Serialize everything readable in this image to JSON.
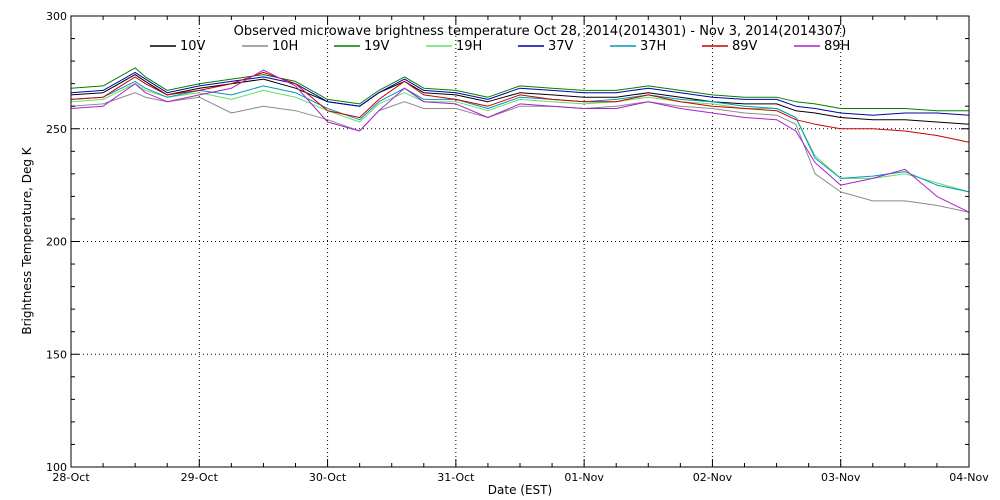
{
  "chart_data": {
    "type": "line",
    "title": "Observed microwave brightness temperature Oct 28, 2014(2014301) - Nov  3, 2014(2014307)",
    "xlabel": "Date (EST)",
    "ylabel": "Brightness Temperature, Deg K",
    "x_unit": "days",
    "xlim": [
      0,
      7
    ],
    "ylim": [
      100,
      300
    ],
    "x_ticks": [
      {
        "value": 0,
        "label": "28-Oct"
      },
      {
        "value": 1,
        "label": "29-Oct"
      },
      {
        "value": 2,
        "label": "30-Oct"
      },
      {
        "value": 3,
        "label": "31-Oct"
      },
      {
        "value": 4,
        "label": "01-Nov"
      },
      {
        "value": 5,
        "label": "02-Nov"
      },
      {
        "value": 6,
        "label": "03-Nov"
      },
      {
        "value": 7,
        "label": "04-Nov"
      }
    ],
    "y_ticks": [
      100,
      150,
      200,
      250,
      300
    ],
    "grid": true,
    "legend_position": "top",
    "x": [
      0,
      0.25,
      0.5,
      0.58,
      0.75,
      1.0,
      1.25,
      1.5,
      1.75,
      2.0,
      2.25,
      2.4,
      2.6,
      2.75,
      3.0,
      3.25,
      3.5,
      3.75,
      4.0,
      4.25,
      4.5,
      4.75,
      5.0,
      5.25,
      5.5,
      5.65,
      5.8,
      6.0,
      6.25,
      6.5,
      6.75,
      7.0
    ],
    "series": [
      {
        "name": "10V",
        "color": "#000000",
        "values": [
          265,
          266,
          274,
          271,
          265,
          268,
          270,
          272,
          268,
          262,
          260,
          266,
          271,
          266,
          265,
          262,
          266,
          265,
          264,
          264,
          266,
          264,
          262,
          261,
          261,
          258,
          257,
          255,
          254,
          254,
          253,
          252
        ]
      },
      {
        "name": "10H",
        "color": "#8c8c8c",
        "values": [
          260,
          261,
          266,
          264,
          262,
          264,
          257,
          260,
          258,
          254,
          249,
          258,
          262,
          259,
          259,
          255,
          260,
          260,
          259,
          260,
          262,
          260,
          259,
          257,
          256,
          252,
          230,
          222,
          218,
          218,
          216,
          213
        ]
      },
      {
        "name": "19V",
        "color": "#008000",
        "values": [
          268,
          269,
          277,
          273,
          267,
          270,
          272,
          274,
          271,
          263,
          261,
          267,
          273,
          268,
          267,
          264,
          269,
          268,
          267,
          267,
          269,
          267,
          265,
          264,
          264,
          262,
          261,
          259,
          259,
          259,
          258,
          258
        ]
      },
      {
        "name": "19H",
        "color": "#66dd66",
        "values": [
          262,
          263,
          270,
          267,
          264,
          266,
          263,
          267,
          264,
          258,
          253,
          261,
          266,
          262,
          262,
          258,
          263,
          262,
          261,
          262,
          264,
          262,
          261,
          259,
          259,
          255,
          238,
          228,
          228,
          230,
          226,
          222
        ]
      },
      {
        "name": "37V",
        "color": "#0000aa",
        "values": [
          266,
          267,
          275,
          272,
          266,
          269,
          271,
          273,
          270,
          262,
          260,
          266,
          272,
          267,
          266,
          263,
          268,
          267,
          266,
          266,
          268,
          266,
          264,
          263,
          263,
          260,
          259,
          257,
          256,
          257,
          257,
          256
        ]
      },
      {
        "name": "37H",
        "color": "#0099bb",
        "values": [
          263,
          264,
          271,
          268,
          264,
          267,
          265,
          269,
          266,
          259,
          254,
          262,
          268,
          263,
          263,
          259,
          264,
          263,
          262,
          263,
          265,
          263,
          262,
          260,
          259,
          255,
          237,
          228,
          229,
          231,
          225,
          222
        ]
      },
      {
        "name": "89V",
        "color": "#cc0000",
        "values": [
          263,
          264,
          273,
          270,
          265,
          267,
          270,
          275,
          270,
          258,
          255,
          263,
          271,
          265,
          263,
          260,
          265,
          263,
          262,
          262,
          265,
          262,
          260,
          259,
          258,
          254,
          252,
          250,
          250,
          249,
          247,
          244
        ]
      },
      {
        "name": "89H",
        "color": "#aa22cc",
        "values": [
          259,
          260,
          270,
          266,
          262,
          265,
          268,
          276,
          269,
          253,
          249,
          258,
          268,
          262,
          261,
          255,
          261,
          260,
          259,
          259,
          262,
          259,
          257,
          255,
          254,
          249,
          235,
          225,
          228,
          232,
          220,
          213
        ]
      }
    ]
  }
}
